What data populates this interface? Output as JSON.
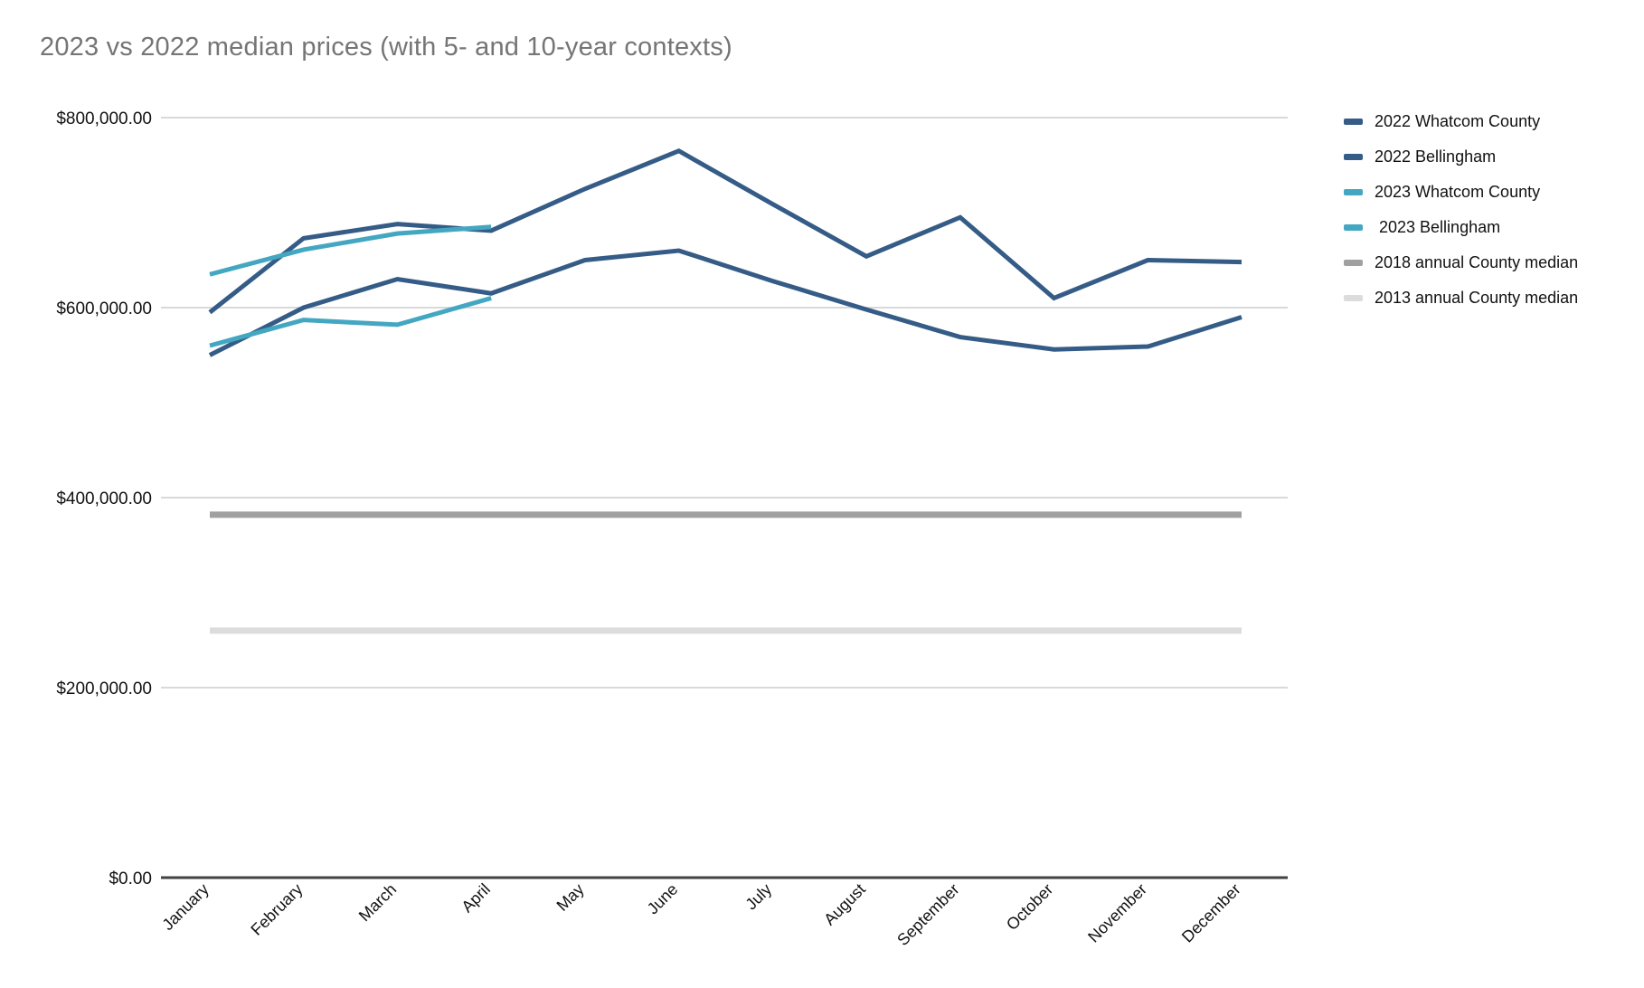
{
  "chart": {
    "title": "2023 vs 2022 median prices (with 5- and 10-year contexts)"
  },
  "chart_data": {
    "type": "line",
    "title": "2023 vs 2022 median prices (with 5- and 10-year contexts)",
    "xlabel": "",
    "ylabel": "",
    "x": [
      "January",
      "February",
      "March",
      "April",
      "May",
      "June",
      "July",
      "August",
      "September",
      "October",
      "November",
      "December"
    ],
    "series": [
      {
        "name": "2022 Whatcom County",
        "color": "#355c86",
        "values": [
          550000,
          600000,
          630000,
          615000,
          650000,
          660000,
          628000,
          598000,
          569000,
          556000,
          559000,
          590000
        ]
      },
      {
        "name": "2022 Bellingham",
        "color": "#355c86",
        "values": [
          595000,
          673000,
          688000,
          681000,
          725000,
          765000,
          709000,
          654000,
          695000,
          610000,
          650000,
          648000
        ]
      },
      {
        "name": "2023 Whatcom County",
        "color": "#44a7c2",
        "values": [
          560000,
          587000,
          582000,
          610000
        ]
      },
      {
        "name": " 2023 Bellingham",
        "color": "#44a7c2",
        "values": [
          635000,
          661000,
          678000,
          685000
        ]
      },
      {
        "name": "2018 annual County median",
        "color": "#a0a0a0",
        "values": [
          382000,
          382000,
          382000,
          382000,
          382000,
          382000,
          382000,
          382000,
          382000,
          382000,
          382000,
          382000
        ]
      },
      {
        "name": "2013 annual County median",
        "color": "#dcdcdc",
        "values": [
          260000,
          260000,
          260000,
          260000,
          260000,
          260000,
          260000,
          260000,
          260000,
          260000,
          260000,
          260000
        ]
      }
    ],
    "ylim": [
      0,
      800000
    ],
    "ytick_step": 200000,
    "ytick_labels": [
      "$0.00",
      "$200,000.00",
      "$400,000.00",
      "$600,000.00",
      "$800,000.00"
    ],
    "grid": true,
    "legend_position": "right",
    "colors": {
      "grid_line": "#d9d9d9",
      "axis_line": "#424242",
      "title_text": "#757575",
      "label_text": "#111111",
      "series_2022": "#355c86",
      "series_2023": "#44a7c2",
      "median_2018": "#a0a0a0",
      "median_2013": "#dcdcdc"
    }
  }
}
